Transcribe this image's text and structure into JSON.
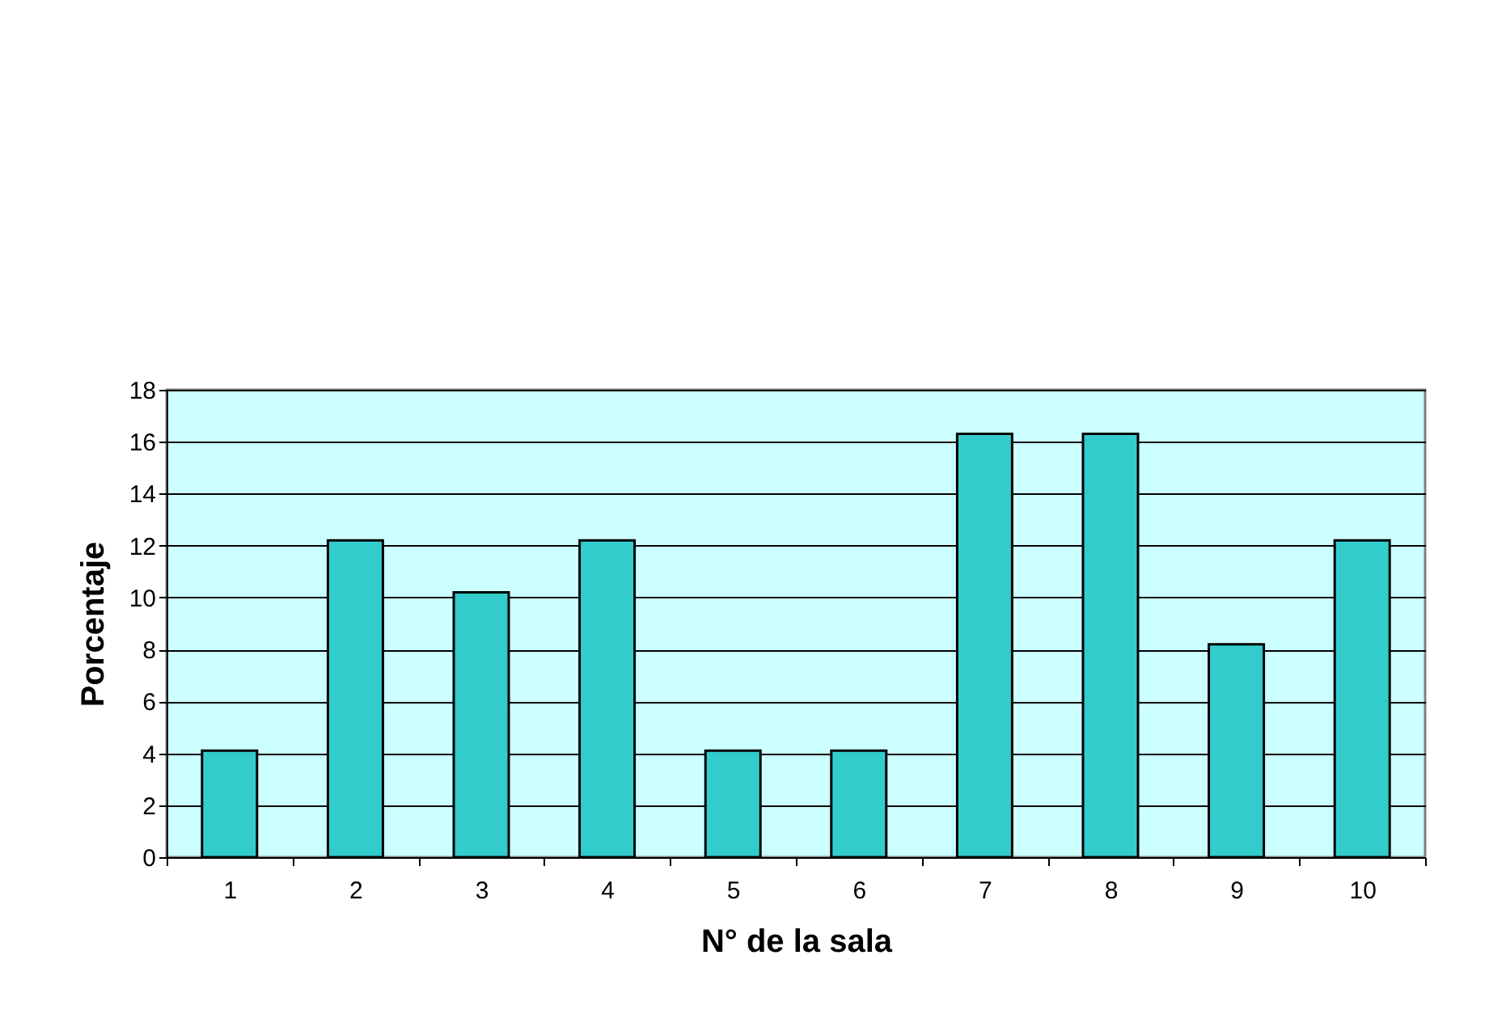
{
  "chart_data": {
    "type": "bar",
    "xlabel": "N° de la sala",
    "ylabel": "Porcentaje",
    "categories": [
      "1",
      "2",
      "3",
      "4",
      "5",
      "6",
      "7",
      "8",
      "9",
      "10"
    ],
    "values": [
      4.1,
      12.2,
      10.2,
      12.2,
      4.1,
      4.1,
      16.3,
      16.3,
      8.2,
      12.2
    ],
    "color": "#33cccc",
    "ylim": [
      0,
      18
    ],
    "yticks": [
      0,
      2,
      4,
      6,
      8,
      10,
      12,
      14,
      16,
      18
    ],
    "grid": "y"
  }
}
